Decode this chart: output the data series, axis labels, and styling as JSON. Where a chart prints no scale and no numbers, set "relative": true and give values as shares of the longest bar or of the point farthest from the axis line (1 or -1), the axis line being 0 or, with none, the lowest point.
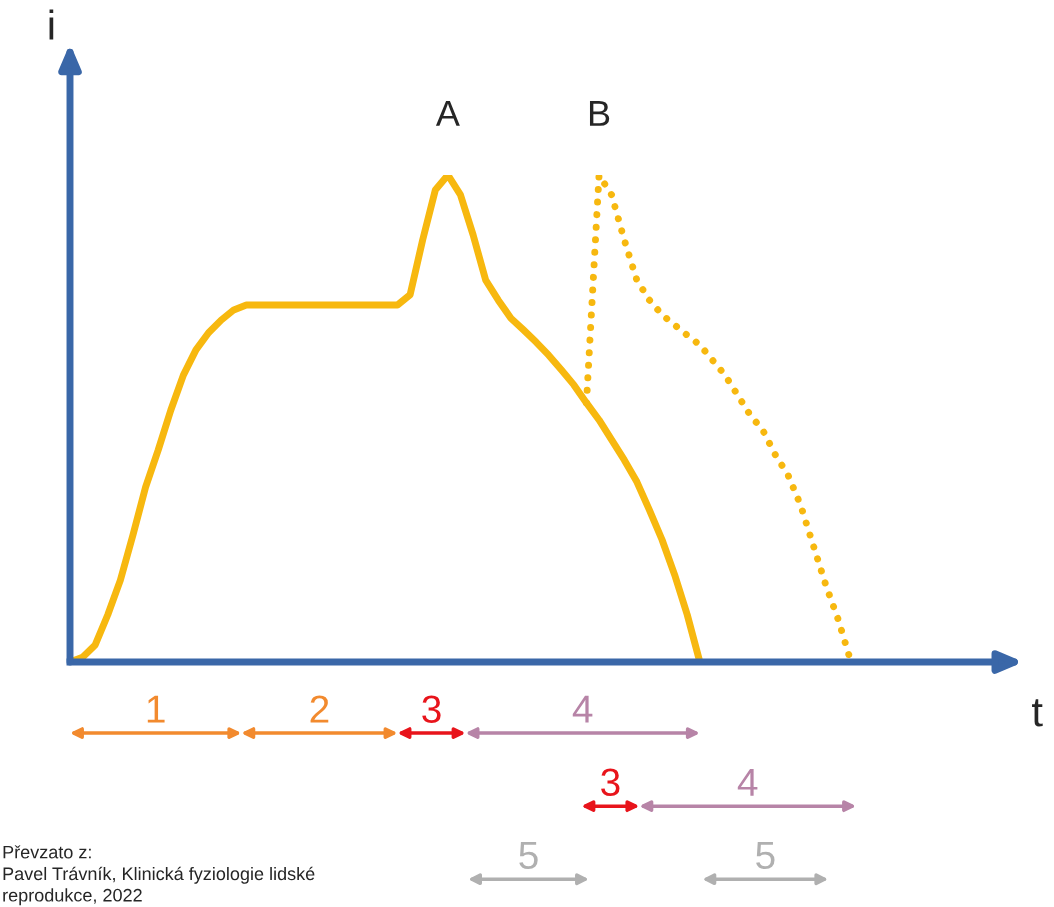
{
  "chart_data": {
    "type": "line",
    "relative": true,
    "xlabel": "t",
    "ylabel": "i",
    "categories": [
      null,
      null,
      null,
      null,
      null,
      null,
      null,
      null,
      null,
      null,
      null,
      null,
      null,
      null,
      null,
      null,
      null,
      null,
      null,
      null,
      null,
      null,
      null,
      null,
      null,
      null,
      null,
      null,
      null,
      null,
      null,
      null,
      null,
      null,
      null,
      null,
      null,
      null,
      null,
      null,
      null,
      null,
      null,
      null,
      null,
      null,
      null,
      null,
      null,
      null,
      null,
      null,
      null,
      null,
      null,
      null,
      null,
      null,
      null,
      null,
      null,
      null,
      null
    ],
    "series": [
      {
        "color": "#f7b80f",
        "line_style": "solid",
        "values": [
          0,
          0.01,
          0.035,
          0.097,
          0.168,
          0.261,
          0.359,
          0.435,
          0.517,
          0.589,
          0.641,
          0.676,
          0.702,
          0.723,
          0.733,
          0.733,
          0.733,
          0.733,
          0.733,
          0.733,
          0.733,
          0.733,
          0.733,
          0.733,
          0.733,
          0.733,
          0.733,
          0.754,
          0.867,
          0.969,
          1,
          0.959,
          0.877,
          0.784,
          0.743,
          0.706,
          0.682,
          0.657,
          0.63,
          0.6,
          0.569,
          0.532,
          0.497,
          0.456,
          0.415,
          0.37,
          0.312,
          0.251,
          0.179,
          0.097,
          0,
          null,
          null,
          null,
          null,
          null,
          null,
          null,
          null,
          null,
          null,
          null,
          null
        ]
      },
      {
        "color": "#f7b80f",
        "line_style": "dotted",
        "values": [
          null,
          null,
          null,
          null,
          null,
          null,
          null,
          null,
          null,
          null,
          null,
          null,
          null,
          null,
          null,
          null,
          null,
          null,
          null,
          null,
          null,
          null,
          null,
          null,
          null,
          null,
          null,
          null,
          null,
          null,
          null,
          null,
          null,
          null,
          null,
          null,
          null,
          null,
          null,
          null,
          null,
          0.532,
          1,
          0.959,
          0.867,
          0.784,
          0.743,
          0.713,
          0.692,
          0.671,
          0.651,
          0.62,
          0.589,
          0.548,
          0.507,
          0.476,
          0.425,
          0.384,
          0.322,
          0.24,
          0.158,
          0.086,
          0
        ]
      }
    ],
    "annotations": [
      {
        "text": "A",
        "y": 1
      },
      {
        "text": "B",
        "y": 1
      },
      "1",
      "2",
      "3",
      "4",
      "3",
      "4",
      "5",
      "5",
      "Převzato z:\nPavel Trávník, Klinická fyziologie lidské\nreprodukce, 2022"
    ]
  }
}
